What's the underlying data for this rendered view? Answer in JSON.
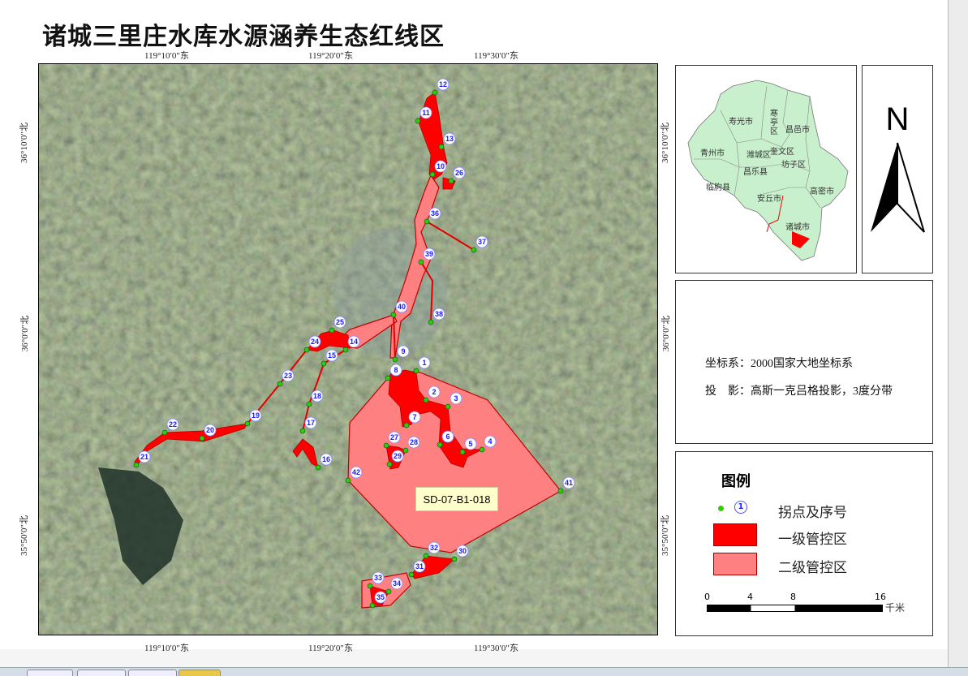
{
  "title": "诸城三里庄水库水源涵养生态红线区",
  "map": {
    "top_ticks": [
      "119°10′0″东",
      "119°20′0″东",
      "119°30′0″东"
    ],
    "bottom_ticks": [
      "119°10′0″东",
      "119°20′0″东",
      "119°30′0″东"
    ],
    "left_ticks": [
      "36°10′0″北",
      "36°0′0″北",
      "35°50′0″北"
    ],
    "right_ticks": [
      "36°10′0″北",
      "36°0′0″北",
      "35°50′0″北"
    ],
    "zone_code": "SD-07-B1-018",
    "point_labels": [
      "1",
      "2",
      "3",
      "4",
      "5",
      "6",
      "7",
      "8",
      "9",
      "10",
      "11",
      "12",
      "13",
      "14",
      "15",
      "16",
      "17",
      "18",
      "19",
      "20",
      "21",
      "22",
      "23",
      "24",
      "25",
      "26",
      "27",
      "28",
      "29",
      "30",
      "31",
      "32",
      "33",
      "34",
      "35",
      "36",
      "37",
      "38",
      "39",
      "40",
      "41",
      "42"
    ],
    "colors": {
      "primary_zone": "#ff0000",
      "secondary_zone": "#ff8080",
      "point": "#33cc00",
      "label": "#1a1aff"
    }
  },
  "inset": {
    "regions": [
      "寿光市",
      "寒亭区",
      "昌邑市",
      "青州市",
      "潍城区",
      "奎文区",
      "坊子区",
      "昌乐县",
      "临朐县",
      "安丘市",
      "高密市",
      "诸城市"
    ],
    "fill_color": "#c8f0cc"
  },
  "north_arrow": {
    "label": "N"
  },
  "info": {
    "coord_system": "坐标系：2000国家大地坐标系",
    "projection": "投　影：高斯一克吕格投影，3度分带"
  },
  "legend": {
    "title": "图例",
    "point_sample": "1",
    "items": [
      {
        "label": "拐点及序号",
        "icon": "point-with-number"
      },
      {
        "label": "一级管控区",
        "color": "#ff0000"
      },
      {
        "label": "二级管控区",
        "color": "#ff8080"
      }
    ]
  },
  "scale_bar": {
    "ticks": [
      "0",
      "4",
      "8",
      "16"
    ],
    "unit": "千米"
  }
}
